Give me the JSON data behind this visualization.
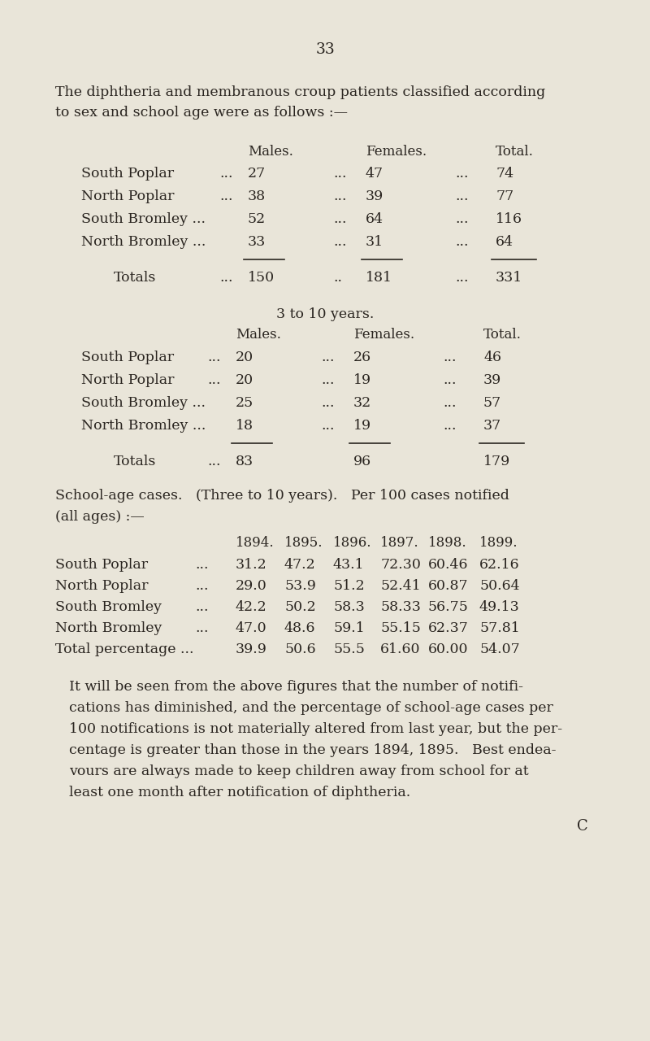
{
  "bg_color": "#e9e5d9",
  "text_color": "#2a2520",
  "page_number": "33",
  "intro_lines": [
    "The diphtheria and membranous croup patients classified according",
    "to sex and school age were as follows :—"
  ],
  "t1_col_headers": [
    "Males.",
    "Females.",
    "Total."
  ],
  "t1_rows": [
    [
      "South Poplar",
      "...",
      "27",
      "...",
      "47",
      "...",
      "74"
    ],
    [
      "North Poplar",
      "...",
      "38",
      "...",
      "39",
      "...",
      "77"
    ],
    [
      "South Bromley ...",
      "52",
      "...",
      "64",
      "...",
      "116"
    ],
    [
      "North Bromley ...",
      "33",
      "...",
      "31",
      "...",
      "64"
    ]
  ],
  "t1_total": [
    "Totals",
    "...",
    "150",
    "..",
    "181",
    "...",
    "331"
  ],
  "t2_title": "3 to 10 years.",
  "t2_col_headers": [
    "Males.",
    "Females.",
    "Total."
  ],
  "t2_rows": [
    [
      "South Poplar",
      "...",
      "20",
      "...",
      "26",
      "...",
      "46"
    ],
    [
      "North Poplar",
      "...",
      "20",
      "...",
      "19",
      "...",
      "39"
    ],
    [
      "South Bromley ...",
      "25",
      "...",
      "32",
      "...",
      "57"
    ],
    [
      "North Bromley ...",
      "18",
      "...",
      "19",
      "...",
      "37"
    ]
  ],
  "t2_total": [
    "Totals",
    "...",
    "83",
    "96",
    "179"
  ],
  "school_line1": "School-age cases.   (Three to 10 years).   Per 100 cases notified",
  "school_line2": "(all ages) :—",
  "t3_years": [
    "1894.",
    "1895.",
    "1896.",
    "1897.",
    "1898.",
    "1899."
  ],
  "t3_rows": [
    [
      "South Poplar",
      "...",
      "31.2",
      "47.2",
      "43.1",
      "72.30",
      "60.46",
      "62.16"
    ],
    [
      "North Poplar",
      "...",
      "29.0",
      "53.9",
      "51.2",
      "52.41",
      "60.87",
      "50.64"
    ],
    [
      "South Bromley",
      "...",
      "42.2",
      "50.2",
      "58.3",
      "58.33",
      "56.75",
      "49.13"
    ],
    [
      "North Bromley",
      "...",
      "47.0",
      "48.6",
      "59.1",
      "55.15",
      "62.37",
      "57.81"
    ],
    [
      "Total percentage ...",
      "39.9",
      "50.6",
      "55.5",
      "61.60",
      "60.00",
      "54.07"
    ]
  ],
  "footer_lines": [
    "It will be seen from the above figures that the number of notifi-",
    "cations has diminished, and the percentage of school-age cases per",
    "100 notifications is not materially altered from last year, but the per-",
    "centage is greater than those in the years 1894, 1895.   Best endea-",
    "vours are always made to keep children away from school for at",
    "least one month after notification of diphtheria."
  ],
  "footer_letter": "C"
}
